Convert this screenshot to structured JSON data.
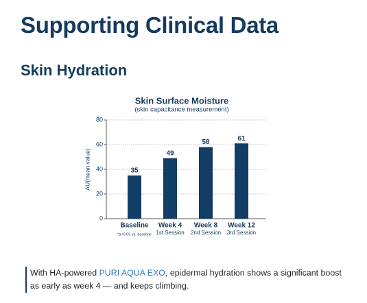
{
  "header": {
    "title": "Supporting Clinical Data",
    "subtitle": "Skin Hydration"
  },
  "chart_data": {
    "type": "bar",
    "title": "Skin Surface Moisture",
    "subtitle": "(skin capacitance measurement)",
    "y_label": "AU(mean value)",
    "categories": [
      "Baseline",
      "Week 4",
      "Week 8",
      "Week 12"
    ],
    "category_sublabels": [
      null,
      "1st Session",
      "2nd Session",
      "3rd Session"
    ],
    "values": [
      35,
      49,
      58,
      61
    ],
    "color": "#123d66",
    "ylim": [
      0,
      80
    ],
    "yticks": [
      0,
      20,
      40,
      60,
      80
    ],
    "grid": true,
    "note": "*p<0.05 vs. baseline"
  },
  "caption": {
    "before": "With HA-powered ",
    "highlight": "PURI AQUA EXO",
    "after": ", epidermal hydration shows a significant boost as early as week 4 — and keeps climbing."
  }
}
